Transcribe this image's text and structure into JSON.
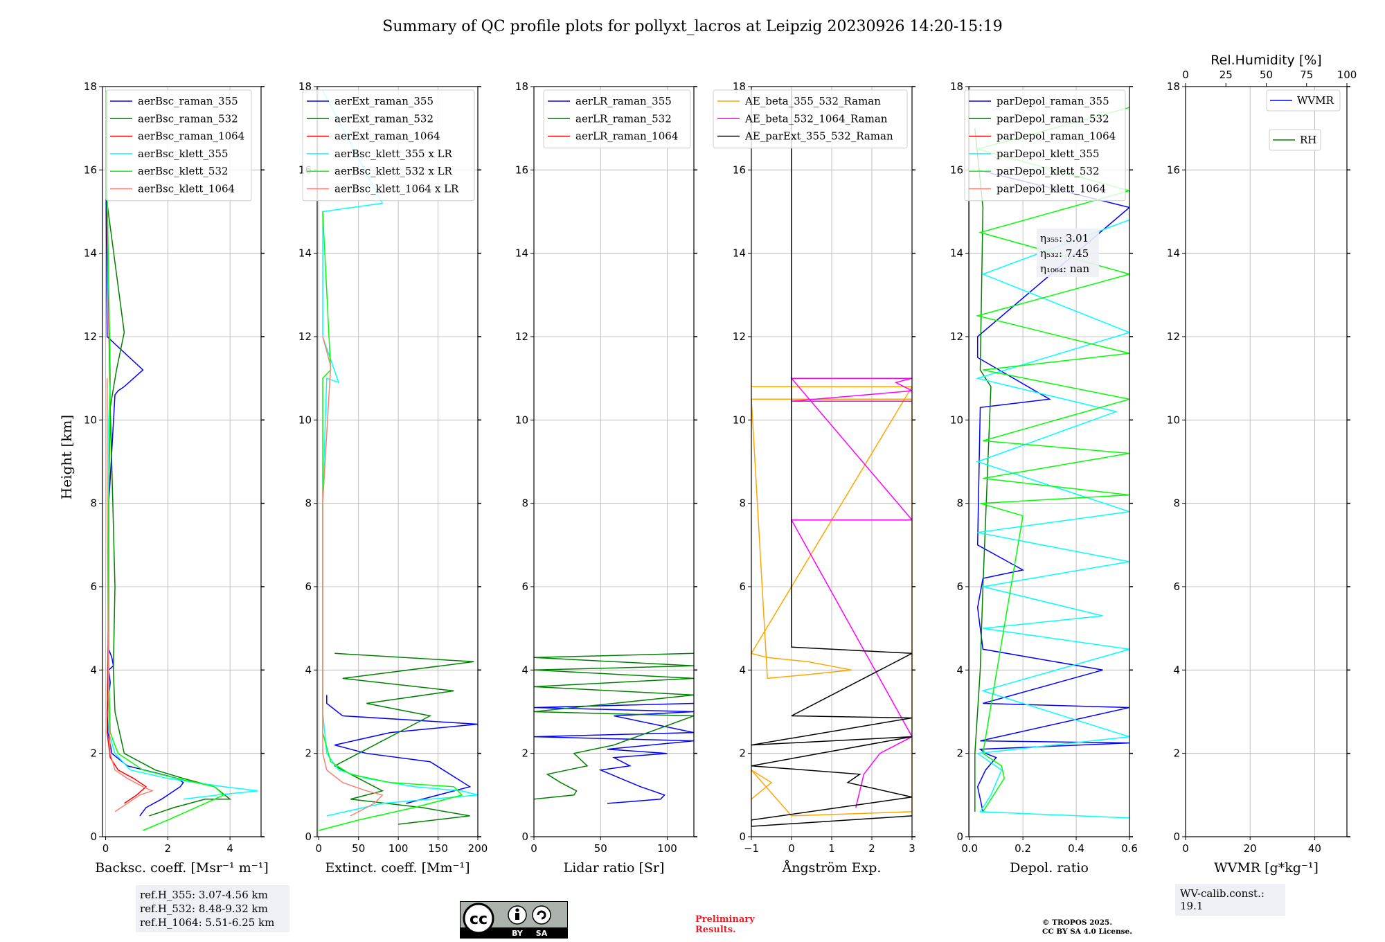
{
  "figure": {
    "title": "Summary of QC profile plots for pollyxt_lacros at Leipzig 20230926 14:20-15:19",
    "ylabel": "Height [km]",
    "ref_heights": [
      "ref.H_355: 3.07-4.56 km",
      "ref.H_532: 8.48-9.32 km",
      "ref.H_1064: 5.51-6.25 km"
    ],
    "wv_calib": "WV-calib.const.: 19.1",
    "preliminary": [
      "Preliminary",
      "Results."
    ],
    "copyright": [
      "© TROPOS 2025.",
      "CC BY SA 4.0 License."
    ],
    "license_badge": {
      "by": "BY",
      "sa": "SA"
    },
    "colors": {
      "blue": "#0000ff",
      "green": "#008000",
      "red": "#ff0000",
      "cyan": "#00ffff",
      "lime": "#00ff00",
      "salmon": "#fa8072",
      "orange": "#ffa500",
      "magenta": "#ff00ff",
      "black": "#000000"
    }
  },
  "chart_data": [
    {
      "type": "line",
      "id": "bsc",
      "xlabel": "Backsc. coeff. [Msr$^{-1}$ m$^{-1}$]",
      "xlabel_text": "Backsc. coeff. [Msr⁻¹ m⁻¹]",
      "xlim": [
        -0.1,
        5
      ],
      "ylim": [
        0,
        18
      ],
      "xticks": [
        0,
        2,
        4
      ],
      "yticks": [
        0,
        2,
        4,
        6,
        8,
        10,
        12,
        14,
        16,
        18
      ],
      "legend": "top-right",
      "series": [
        {
          "name": "aerBsc_raman_355",
          "color": "#0000ff",
          "x": [
            1.1,
            1.3,
            1.8,
            2.2,
            2.4,
            2.5,
            2.3,
            1.8,
            0.7,
            0.2,
            0.08,
            0.05,
            0.15,
            0.1,
            0.25,
            0.2,
            0.1,
            0.1,
            0.1,
            0.15,
            0.3,
            0.4,
            0.6,
            1.2,
            0.05,
            0.02,
            0.02
          ],
          "y": [
            0.5,
            0.7,
            0.9,
            1.1,
            1.2,
            1.3,
            1.4,
            1.5,
            1.7,
            2.0,
            2.5,
            3.0,
            3.7,
            4.0,
            4.1,
            4.3,
            4.5,
            5.0,
            8.0,
            8.6,
            10.6,
            10.7,
            10.8,
            11.2,
            12.0,
            15.0,
            17.9
          ]
        },
        {
          "name": "aerBsc_raman_532",
          "color": "#008000",
          "x": [
            1.4,
            2.2,
            3.2,
            4.0,
            3.5,
            2.5,
            1.6,
            0.6,
            0.3,
            0.25,
            0.3,
            0.25,
            0.15,
            0.35,
            0.6,
            0.05,
            0.05
          ],
          "y": [
            0.5,
            0.7,
            0.9,
            0.9,
            1.2,
            1.4,
            1.6,
            2.0,
            3.0,
            4.0,
            6.0,
            7.5,
            10.3,
            11.2,
            12.1,
            15.2,
            17.5
          ]
        },
        {
          "name": "aerBsc_raman_1064",
          "color": "#ff0000",
          "x": [
            0.6,
            1.0,
            1.3,
            0.9,
            0.4,
            0.15,
            0.05,
            0.08,
            0.1,
            0.15,
            0.12,
            0.05
          ],
          "y": [
            0.8,
            1.0,
            1.2,
            1.4,
            1.6,
            1.9,
            2.5,
            5.0,
            8.0,
            10.3,
            11.5,
            15.0
          ]
        },
        {
          "name": "aerBsc_klett_355",
          "color": "#00ffff",
          "x": [
            2.5,
            3.6,
            4.9,
            3.8,
            2.0,
            0.8,
            0.3,
            0.1,
            0.1,
            0.1,
            0.15,
            0.1,
            0.05,
            0.05
          ],
          "y": [
            0.9,
            1.0,
            1.1,
            1.2,
            1.4,
            1.6,
            2.0,
            2.5,
            4.0,
            10.0,
            11.0,
            13.0,
            15.5,
            17.9
          ]
        },
        {
          "name": "aerBsc_klett_532",
          "color": "#00ff00",
          "x": [
            1.2,
            2.0,
            3.2,
            3.8,
            3.5,
            2.3,
            1.2,
            0.4,
            0.15,
            0.1,
            0.1,
            0.15,
            0.05,
            0.05
          ],
          "y": [
            0.15,
            0.4,
            0.8,
            1.0,
            1.2,
            1.4,
            1.6,
            2.0,
            2.5,
            4.0,
            8.0,
            11.0,
            15.6,
            17.9
          ]
        },
        {
          "name": "aerBsc_klett_1064",
          "color": "#fa8072",
          "x": [
            0.3,
            0.7,
            1.1,
            1.5,
            1.2,
            0.7,
            0.3,
            0.15,
            0.1,
            0.05,
            0.05
          ],
          "y": [
            0.6,
            0.8,
            1.0,
            1.1,
            1.2,
            1.4,
            1.6,
            2.0,
            3.0,
            8.0,
            11.0
          ]
        }
      ]
    },
    {
      "type": "line",
      "id": "ext",
      "xlabel": "Extinct. coeff. [Mm$^{-1}$]",
      "xlabel_text": "Extinct. coeff. [Mm⁻¹]",
      "xlim": [
        -2,
        200
      ],
      "ylim": [
        0,
        18
      ],
      "xticks": [
        0,
        50,
        100,
        150,
        200
      ],
      "yticks": [
        0,
        2,
        4,
        6,
        8,
        10,
        12,
        14,
        16,
        18
      ],
      "legend": "top-right",
      "series": [
        {
          "name": "aerExt_raman_355",
          "color": "#0000ff",
          "x": [
            110,
            190,
            140,
            60,
            20,
            90,
            200,
            30,
            10,
            10
          ],
          "y": [
            0.8,
            1.2,
            1.8,
            2.0,
            2.2,
            2.5,
            2.7,
            2.9,
            3.2,
            3.4
          ]
        },
        {
          "name": "aerExt_raman_532",
          "color": "#008000",
          "x": [
            100,
            190,
            130,
            40,
            80,
            20,
            140,
            60,
            170,
            30,
            195,
            20
          ],
          "y": [
            0.3,
            0.5,
            0.7,
            0.9,
            1.1,
            1.7,
            2.9,
            3.2,
            3.5,
            3.8,
            4.2,
            4.4
          ]
        },
        {
          "name": "aerExt_raman_1064",
          "color": "#ff0000",
          "x": [],
          "y": []
        },
        {
          "name": "aerBsc_klett_355 x LR",
          "color": "#00ffff",
          "x": [
            10,
            80,
            200,
            180,
            120,
            60,
            25,
            10,
            5,
            5,
            10,
            25,
            5,
            5,
            80,
            5
          ],
          "y": [
            0.5,
            0.8,
            1.0,
            1.1,
            1.2,
            1.4,
            1.6,
            2.0,
            3.0,
            8.0,
            11.0,
            10.9,
            12.0,
            15.0,
            15.2,
            17.9
          ]
        },
        {
          "name": "aerBsc_klett_532 x LR",
          "color": "#00ff00",
          "x": [
            0,
            50,
            120,
            180,
            170,
            90,
            40,
            15,
            5,
            5,
            5,
            15,
            5
          ],
          "y": [
            0.15,
            0.4,
            0.7,
            1.0,
            1.2,
            1.3,
            1.5,
            1.8,
            2.5,
            6.0,
            11.0,
            11.2,
            15.0
          ]
        },
        {
          "name": "aerBsc_klett_1064 x LR",
          "color": "#fa8072",
          "x": [
            40,
            70,
            80,
            60,
            30,
            10,
            5,
            5,
            15,
            5
          ],
          "y": [
            0.5,
            0.8,
            1.0,
            1.1,
            1.3,
            1.6,
            2.0,
            8.0,
            11.3,
            12.0
          ]
        }
      ]
    },
    {
      "type": "line",
      "id": "lr",
      "xlabel": "Lidar ratio [Sr]",
      "xlabel_text": "Lidar ratio [Sr]",
      "xlim": [
        0,
        120
      ],
      "ylim": [
        0,
        18
      ],
      "xticks": [
        0,
        50,
        100
      ],
      "yticks": [
        0,
        2,
        4,
        6,
        8,
        10,
        12,
        14,
        16,
        18
      ],
      "legend": "top-right",
      "series": [
        {
          "name": "aerLR_raman_355",
          "color": "#0000ff",
          "x": [
            55,
            95,
            98,
            80,
            65,
            50,
            72,
            60,
            100,
            55,
            120,
            0,
            120,
            60,
            120,
            0,
            120
          ],
          "y": [
            0.8,
            0.9,
            1.0,
            1.2,
            1.4,
            1.6,
            1.7,
            1.9,
            2.0,
            2.1,
            2.3,
            2.4,
            2.5,
            2.9,
            3.0,
            3.1,
            3.2
          ]
        },
        {
          "name": "aerLR_raman_532",
          "color": "#008000",
          "x": [
            0,
            30,
            32,
            20,
            10,
            40,
            30,
            60,
            120,
            0,
            120,
            0,
            120,
            0,
            120,
            0,
            120
          ],
          "y": [
            0.9,
            1.0,
            1.1,
            1.3,
            1.5,
            1.7,
            2.0,
            2.2,
            2.9,
            3.0,
            3.4,
            3.6,
            3.8,
            4.0,
            4.1,
            4.3,
            4.4
          ]
        },
        {
          "name": "aerLR_raman_1064",
          "color": "#ff0000",
          "x": [],
          "y": []
        }
      ]
    },
    {
      "type": "line",
      "id": "ae",
      "xlabel": "Ångström Exp.",
      "xlabel_text": "Ångström Exp.",
      "xlim": [
        -1,
        3
      ],
      "ylim": [
        0,
        18
      ],
      "xticks": [
        -1,
        0,
        1,
        2,
        3
      ],
      "yticks": [
        0,
        2,
        4,
        6,
        8,
        10,
        12,
        14,
        16,
        18
      ],
      "legend": "top-left",
      "series": [
        {
          "name": "AE_beta_355_532_Raman",
          "color": "#ffa500",
          "x": [
            -1,
            -0.5,
            -1,
            0,
            3,
            3,
            -1,
            -0.6,
            0.5,
            1.5,
            0.4,
            -0.6,
            -1,
            3,
            -1
          ],
          "y": [
            0.9,
            1.3,
            1.6,
            0.5,
            0.6,
            10.5,
            10.5,
            3.8,
            3.9,
            4.0,
            4.2,
            4.3,
            4.4,
            10.8,
            10.8
          ]
        },
        {
          "name": "AE_beta_532_1064_Raman",
          "color": "#ff00ff",
          "x": [
            1.6,
            1.8,
            2.2,
            3.0,
            0,
            3,
            0,
            3,
            2.6,
            3.0,
            0,
            3
          ],
          "y": [
            0.7,
            1.5,
            2.0,
            2.4,
            7.6,
            7.6,
            11.0,
            11.0,
            10.9,
            10.7,
            10.45,
            10.45
          ]
        },
        {
          "name": "AE_parExt_355_532_Raman",
          "color": "#000000",
          "x": [
            0,
            0,
            3,
            0,
            3,
            -1,
            3,
            -1,
            1.7,
            1.4,
            3.0,
            -1,
            -1,
            3
          ],
          "y": [
            17.9,
            4.55,
            4.4,
            2.9,
            2.85,
            2.2,
            2.4,
            1.7,
            1.5,
            1.3,
            0.95,
            0.4,
            0.25,
            0.5
          ]
        }
      ]
    },
    {
      "type": "line",
      "id": "depol",
      "xlabel": "Depol. ratio",
      "xlabel_text": "Depol. ratio",
      "xlim": [
        -0.003,
        0.6
      ],
      "ylim": [
        0,
        18
      ],
      "xticks": [
        0.0,
        0.2,
        0.4,
        0.6
      ],
      "yticks": [
        0,
        2,
        4,
        6,
        8,
        10,
        12,
        14,
        16,
        18
      ],
      "legend": "top-left",
      "annotation": [
        "η₃₅₅: 3.01",
        "η₅₃₂: 7.45",
        "η₁₀₆₄: nan"
      ],
      "series": [
        {
          "name": "parDepol_raman_355",
          "color": "#0000ff",
          "x": [
            0.05,
            0.03,
            0.06,
            0.1,
            0.06,
            0.04,
            0.6,
            0.04,
            0.6,
            0.05,
            0.5,
            0.05,
            0.03,
            0.05,
            0.2,
            0.03,
            0.04,
            0.3,
            0.03,
            0.03,
            0.6,
            0.03
          ],
          "y": [
            0.6,
            1.2,
            1.6,
            1.9,
            2.0,
            2.1,
            2.25,
            2.3,
            3.1,
            3.2,
            4.0,
            4.5,
            5.5,
            6.2,
            6.4,
            7.0,
            10.3,
            10.5,
            11.5,
            12.0,
            15.1,
            16.0
          ]
        },
        {
          "name": "parDepol_raman_532",
          "color": "#008000",
          "x": [
            0.02,
            0.02,
            0.04,
            0.05,
            0.08,
            0.04,
            0.05,
            0.02
          ],
          "y": [
            0.6,
            2.0,
            4.0,
            6.0,
            10.8,
            11.2,
            15.1,
            17.0
          ]
        },
        {
          "name": "parDepol_raman_1064",
          "color": "#ff0000",
          "x": [],
          "y": []
        },
        {
          "name": "parDepol_klett_355",
          "color": "#00ffff",
          "x": [
            0.6,
            0.04,
            0.08,
            0.12,
            0.03,
            0.6,
            0.05,
            0.6,
            0.05,
            0.5,
            0.05,
            0.6,
            0.03,
            0.6,
            0.03,
            0.55,
            0.03,
            0.6,
            0.05,
            0.6
          ],
          "y": [
            0.45,
            0.6,
            1.0,
            1.6,
            2.0,
            2.4,
            3.5,
            4.5,
            5.0,
            5.3,
            6.0,
            6.6,
            7.3,
            7.8,
            9.0,
            10.2,
            11.0,
            12.1,
            13.5,
            14.8
          ]
        },
        {
          "name": "parDepol_klett_532",
          "color": "#00ff00",
          "x": [
            0.05,
            0.13,
            0.12,
            0.05,
            0.2,
            0.04,
            0.6,
            0.05,
            0.6,
            0.05,
            0.6,
            0.05,
            0.6,
            0.03,
            0.6,
            0.04,
            0.6,
            0.03,
            0.6
          ],
          "y": [
            0.6,
            1.4,
            1.7,
            2.0,
            7.7,
            8.0,
            8.2,
            8.6,
            9.2,
            9.5,
            10.5,
            11.2,
            11.6,
            12.5,
            13.5,
            14.5,
            15.5,
            16.5,
            17.5
          ]
        },
        {
          "name": "parDepol_klett_1064",
          "color": "#fa8072",
          "x": [],
          "y": []
        }
      ]
    },
    {
      "type": "line",
      "id": "wv",
      "xlabel": "WVMR [$g*kg^{-1}$]",
      "xlabel_text": "WVMR [g*kg⁻¹]",
      "xlim": [
        0,
        50
      ],
      "ylim": [
        0,
        18
      ],
      "xticks": [
        0,
        20,
        40
      ],
      "yticks": [
        0,
        2,
        4,
        6,
        8,
        10,
        12,
        14,
        16,
        18
      ],
      "top_axis": {
        "label": "Rel.Humidity [%]",
        "xlim": [
          0,
          100
        ],
        "xticks": [
          0,
          25,
          50,
          75,
          100
        ]
      },
      "series": [
        {
          "name": "WVMR",
          "color": "#0000ff",
          "x": [],
          "y": []
        },
        {
          "name": "RH",
          "color": "#008000",
          "x": [],
          "y": []
        }
      ]
    }
  ]
}
